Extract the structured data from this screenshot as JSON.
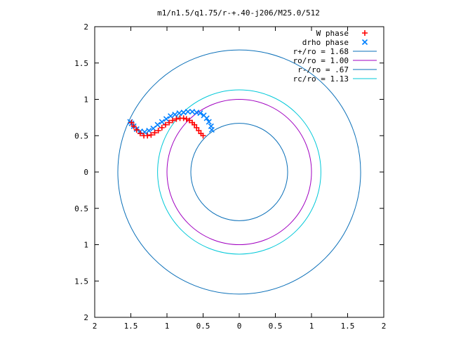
{
  "chart_data": {
    "type": "scatter",
    "title": "m1/n1.5/q1.75/r-+.40-j206/M25.0/512",
    "xlabel": "",
    "ylabel": "",
    "xlim": [
      -2,
      2
    ],
    "ylim": [
      -2,
      2
    ],
    "x_tick_labels": [
      "2",
      "1.5",
      "1",
      "0.5",
      "0",
      "0.5",
      "1",
      "1.5",
      "2"
    ],
    "y_tick_labels": [
      "2",
      "1.5",
      "1",
      "0.5",
      "0",
      "0.5",
      "1",
      "1.5",
      "2"
    ],
    "grid": false,
    "legend_position": "top-right",
    "circles": [
      {
        "name": "r+/ro = 1.68",
        "radius": 1.68,
        "color": "#0a6fb8"
      },
      {
        "name": "ro/ro = 1.00",
        "radius": 1.0,
        "color": "#a000c0"
      },
      {
        "name": "r-/ro = .67",
        "radius": 0.67,
        "color": "#0a6fb8"
      },
      {
        "name": "rc/ro = 1.13",
        "radius": 1.13,
        "color": "#00c8d8"
      }
    ],
    "series": [
      {
        "name": "W phase",
        "marker": "+",
        "color": "#ff0000",
        "points": [
          [
            -0.5,
            0.5
          ],
          [
            -0.53,
            0.53
          ],
          [
            -0.56,
            0.57
          ],
          [
            -0.59,
            0.61
          ],
          [
            -0.62,
            0.65
          ],
          [
            -0.65,
            0.68
          ],
          [
            -0.69,
            0.71
          ],
          [
            -0.73,
            0.73
          ],
          [
            -0.77,
            0.74
          ],
          [
            -0.82,
            0.74
          ],
          [
            -0.87,
            0.73
          ],
          [
            -0.92,
            0.71
          ],
          [
            -0.97,
            0.68
          ],
          [
            -1.02,
            0.65
          ],
          [
            -1.07,
            0.61
          ],
          [
            -1.12,
            0.57
          ],
          [
            -1.17,
            0.54
          ],
          [
            -1.22,
            0.51
          ],
          [
            -1.27,
            0.5
          ],
          [
            -1.32,
            0.5
          ],
          [
            -1.37,
            0.53
          ],
          [
            -1.42,
            0.58
          ],
          [
            -1.46,
            0.63
          ],
          [
            -1.49,
            0.68
          ]
        ]
      },
      {
        "name": "drho phase",
        "marker": "x",
        "color": "#0080ff",
        "points": [
          [
            -0.38,
            0.58
          ],
          [
            -0.39,
            0.63
          ],
          [
            -0.42,
            0.69
          ],
          [
            -0.45,
            0.74
          ],
          [
            -0.49,
            0.78
          ],
          [
            -0.54,
            0.81
          ],
          [
            -0.59,
            0.82
          ],
          [
            -0.65,
            0.83
          ],
          [
            -0.71,
            0.83
          ],
          [
            -0.77,
            0.82
          ],
          [
            -0.83,
            0.81
          ],
          [
            -0.89,
            0.79
          ],
          [
            -0.95,
            0.77
          ],
          [
            -1.01,
            0.73
          ],
          [
            -1.07,
            0.69
          ],
          [
            -1.13,
            0.65
          ],
          [
            -1.19,
            0.6
          ],
          [
            -1.25,
            0.57
          ],
          [
            -1.31,
            0.55
          ],
          [
            -1.37,
            0.56
          ],
          [
            -1.42,
            0.59
          ],
          [
            -1.46,
            0.63
          ],
          [
            -1.49,
            0.67
          ],
          [
            -1.51,
            0.69
          ]
        ]
      }
    ]
  }
}
